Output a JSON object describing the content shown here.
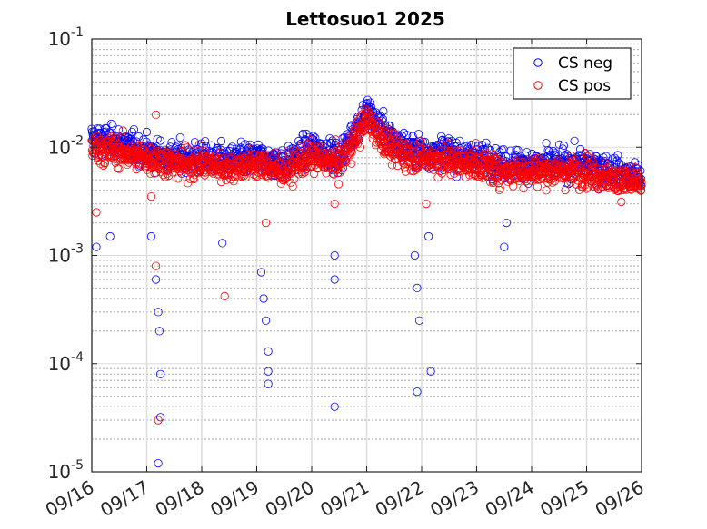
{
  "chart_data": {
    "type": "scatter",
    "title": "Lettosuo1 2025",
    "xlabel": "",
    "ylabel": "",
    "yscale": "log",
    "ylim": [
      1e-05,
      0.1
    ],
    "xlim": [
      "2025-09-16",
      "2025-09-26"
    ],
    "x_ticks": [
      "09/16",
      "09/17",
      "09/18",
      "09/19",
      "09/20",
      "09/21",
      "09/22",
      "09/23",
      "09/24",
      "09/25",
      "09/26"
    ],
    "y_ticks": [
      {
        "base": "10",
        "exp": "-5"
      },
      {
        "base": "10",
        "exp": "-4"
      },
      {
        "base": "10",
        "exp": "-3"
      },
      {
        "base": "10",
        "exp": "-2"
      },
      {
        "base": "10",
        "exp": "-1"
      }
    ],
    "grid": true,
    "minor_grid": true,
    "legend_position": "top-right",
    "marker": "open-circle",
    "series": [
      {
        "name": "CS neg",
        "color": "#0000ff",
        "typical_level": [
          [
            "2025-09-16",
            0.012
          ],
          [
            "2025-09-16T12:00",
            0.011
          ],
          [
            "2025-09-17",
            0.009
          ],
          [
            "2025-09-17T12:00",
            0.008
          ],
          [
            "2025-09-18",
            0.008
          ],
          [
            "2025-09-18T12:00",
            0.0075
          ],
          [
            "2025-09-19",
            0.008
          ],
          [
            "2025-09-19T12:00",
            0.007
          ],
          [
            "2025-09-20",
            0.01
          ],
          [
            "2025-09-20T12:00",
            0.008
          ],
          [
            "2025-09-21",
            0.022
          ],
          [
            "2025-09-21T12:00",
            0.011
          ],
          [
            "2025-09-22",
            0.009
          ],
          [
            "2025-09-22T12:00",
            0.009
          ],
          [
            "2025-09-23",
            0.008
          ],
          [
            "2025-09-23T12:00",
            0.007
          ],
          [
            "2025-09-24",
            0.007
          ],
          [
            "2025-09-24T12:00",
            0.007
          ],
          [
            "2025-09-25",
            0.007
          ],
          [
            "2025-09-25T12:00",
            0.006
          ],
          [
            "2025-09-26",
            0.005
          ]
        ],
        "outliers": [
          [
            "2025-09-16T02:00",
            0.0012
          ],
          [
            "2025-09-16T08:00",
            0.0015
          ],
          [
            "2025-09-17T02:00",
            0.0015
          ],
          [
            "2025-09-17T04:00",
            0.0006
          ],
          [
            "2025-09-17T05:00",
            0.0003
          ],
          [
            "2025-09-17T05:30",
            0.0002
          ],
          [
            "2025-09-17T06:00",
            8e-05
          ],
          [
            "2025-09-17T06:00",
            3.2e-05
          ],
          [
            "2025-09-17T05:00",
            1.2e-05
          ],
          [
            "2025-09-18T09:00",
            0.0013
          ],
          [
            "2025-09-19T02:00",
            0.0007
          ],
          [
            "2025-09-19T03:00",
            0.0004
          ],
          [
            "2025-09-19T04:00",
            0.00025
          ],
          [
            "2025-09-19T05:00",
            0.00013
          ],
          [
            "2025-09-19T05:00",
            8.5e-05
          ],
          [
            "2025-09-19T05:00",
            6.5e-05
          ],
          [
            "2025-09-20T10:00",
            0.001
          ],
          [
            "2025-09-20T10:00",
            0.0006
          ],
          [
            "2025-09-20T10:00",
            4e-05
          ],
          [
            "2025-09-21T21:00",
            0.001
          ],
          [
            "2025-09-21T22:00",
            0.0005
          ],
          [
            "2025-09-21T23:00",
            0.00025
          ],
          [
            "2025-09-21T22:00",
            5.5e-05
          ],
          [
            "2025-09-22T04:00",
            8.5e-05
          ],
          [
            "2025-09-22T03:00",
            0.0015
          ],
          [
            "2025-09-23T12:00",
            0.0012
          ],
          [
            "2025-09-23T13:00",
            0.002
          ]
        ]
      },
      {
        "name": "CS pos",
        "color": "#ff0000",
        "typical_level": [
          [
            "2025-09-16",
            0.01
          ],
          [
            "2025-09-16T12:00",
            0.009
          ],
          [
            "2025-09-17",
            0.008
          ],
          [
            "2025-09-17T12:00",
            0.007
          ],
          [
            "2025-09-18",
            0.007
          ],
          [
            "2025-09-18T12:00",
            0.0065
          ],
          [
            "2025-09-19",
            0.007
          ],
          [
            "2025-09-19T12:00",
            0.006
          ],
          [
            "2025-09-20",
            0.008
          ],
          [
            "2025-09-20T12:00",
            0.007
          ],
          [
            "2025-09-21",
            0.018
          ],
          [
            "2025-09-21T12:00",
            0.009
          ],
          [
            "2025-09-22",
            0.008
          ],
          [
            "2025-09-22T12:00",
            0.0075
          ],
          [
            "2025-09-23",
            0.007
          ],
          [
            "2025-09-23T12:00",
            0.006
          ],
          [
            "2025-09-24",
            0.006
          ],
          [
            "2025-09-24T12:00",
            0.006
          ],
          [
            "2025-09-25",
            0.006
          ],
          [
            "2025-09-25T12:00",
            0.005
          ],
          [
            "2025-09-26",
            0.0045
          ]
        ],
        "outliers": [
          [
            "2025-09-16T02:00",
            0.0025
          ],
          [
            "2025-09-17T02:00",
            0.0035
          ],
          [
            "2025-09-17T04:00",
            0.0008
          ],
          [
            "2025-09-17T05:00",
            3e-05
          ],
          [
            "2025-09-17T04:00",
            0.02
          ],
          [
            "2025-09-18T10:00",
            0.00042
          ],
          [
            "2025-09-19T04:00",
            0.002
          ],
          [
            "2025-09-20T10:00",
            0.003
          ],
          [
            "2025-09-22T02:00",
            0.003
          ]
        ]
      }
    ]
  }
}
